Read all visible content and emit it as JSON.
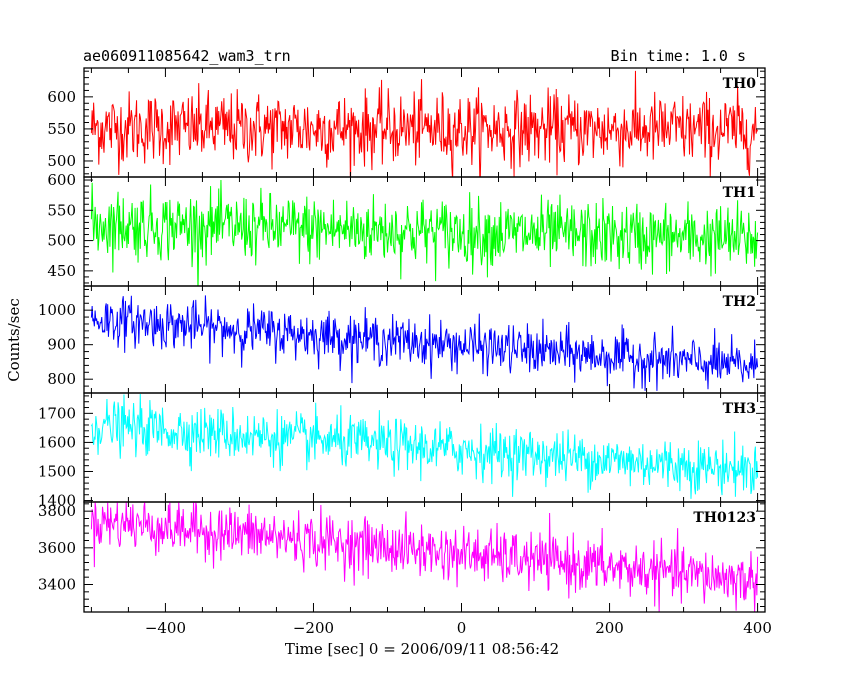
{
  "header": {
    "source": "ae060911085642_wam3_trn",
    "bin_time": "Bin time: 1.0 s"
  },
  "chart_data": {
    "type": "line",
    "title": "ae060911085642_wam3_trn",
    "subtitle": "Bin time: 1.0 s",
    "xlabel": "Time [sec] 0 = 2006/09/11 08:56:42",
    "ylabel": "Counts/sec",
    "xlim": [
      -510,
      410
    ],
    "x_ticks": [
      -400,
      -200,
      0,
      200,
      400
    ],
    "x_tick_labels": [
      "−400",
      "−200",
      "0",
      "200",
      "400"
    ],
    "bin_time_s": 1.0,
    "x_range": [
      -500,
      400
    ],
    "grid": false,
    "legend": "none",
    "panels": [
      {
        "name": "TH0",
        "color": "#ff0000",
        "ylim": [
          475,
          645
        ],
        "y_ticks": [
          500,
          550,
          600
        ],
        "trend_start": 552,
        "trend_end": 548,
        "noise": 28,
        "spike_max": 650
      },
      {
        "name": "TH1",
        "color": "#00ff00",
        "ylim": [
          425,
          605
        ],
        "y_ticks": [
          450,
          500,
          550,
          600
        ],
        "trend_start": 528,
        "trend_end": 502,
        "noise": 28,
        "spike_max": 600
      },
      {
        "name": "TH2",
        "color": "#0000ff",
        "ylim": [
          760,
          1070
        ],
        "y_ticks": [
          800,
          900,
          1000
        ],
        "trend_start": 975,
        "trend_end": 835,
        "noise": 35,
        "spike_max": 1070
      },
      {
        "name": "TH3",
        "color": "#00ffff",
        "ylim": [
          1395,
          1770
        ],
        "y_ticks": [
          1400,
          1500,
          1600,
          1700
        ],
        "trend_start": 1660,
        "trend_end": 1505,
        "noise": 45,
        "spike_max": 1770
      },
      {
        "name": "TH0123",
        "color": "#ff00ff",
        "ylim": [
          3250,
          3850
        ],
        "y_ticks": [
          3400,
          3600,
          3800
        ],
        "trend_start": 3750,
        "trend_end": 3420,
        "noise": 75,
        "spike_max": 3850
      }
    ]
  }
}
